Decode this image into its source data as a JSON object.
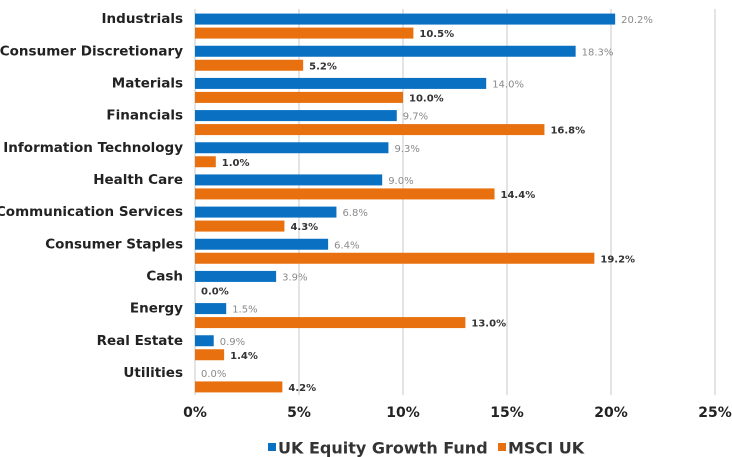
{
  "chart_data": {
    "type": "bar",
    "orientation": "horizontal",
    "categories": [
      "Industrials",
      "Consumer Discretionary",
      "Materials",
      "Financials",
      "Information Technology",
      "Health Care",
      "Communication Services",
      "Consumer Staples",
      "Cash",
      "Energy",
      "Real Estate",
      "Utilities"
    ],
    "series": [
      {
        "name": "UK Equity Growth Fund",
        "color": "#0a70c2",
        "values": [
          20.2,
          18.3,
          14.0,
          9.7,
          9.3,
          9.0,
          6.8,
          6.4,
          3.9,
          1.5,
          0.9,
          0.0
        ],
        "value_labels": [
          "20.2%",
          "18.3%",
          "14.0%",
          "9.7%",
          "9.3%",
          "9.0%",
          "6.8%",
          "6.4%",
          "3.9%",
          "1.5%",
          "0.9%",
          "0.0%"
        ]
      },
      {
        "name": "MSCI UK",
        "color": "#e8700f",
        "values": [
          10.5,
          5.2,
          10.0,
          16.8,
          1.0,
          14.4,
          4.3,
          19.2,
          0.0,
          13.0,
          1.4,
          4.2
        ],
        "value_labels": [
          "10.5%",
          "5.2%",
          "10.0%",
          "16.8%",
          "1.0%",
          "14.4%",
          "4.3%",
          "19.2%",
          "0.0%",
          "13.0%",
          "1.4%",
          "4.2%"
        ]
      }
    ],
    "xlim": [
      0,
      25
    ],
    "xticks": [
      {
        "value": 0,
        "label": "0%"
      },
      {
        "value": 5,
        "label": "5%"
      },
      {
        "value": 10,
        "label": "10%"
      },
      {
        "value": 15,
        "label": "15%"
      },
      {
        "value": 20,
        "label": "20%"
      },
      {
        "value": 25,
        "label": "25%"
      }
    ],
    "grid": true,
    "legend": "bottom"
  }
}
